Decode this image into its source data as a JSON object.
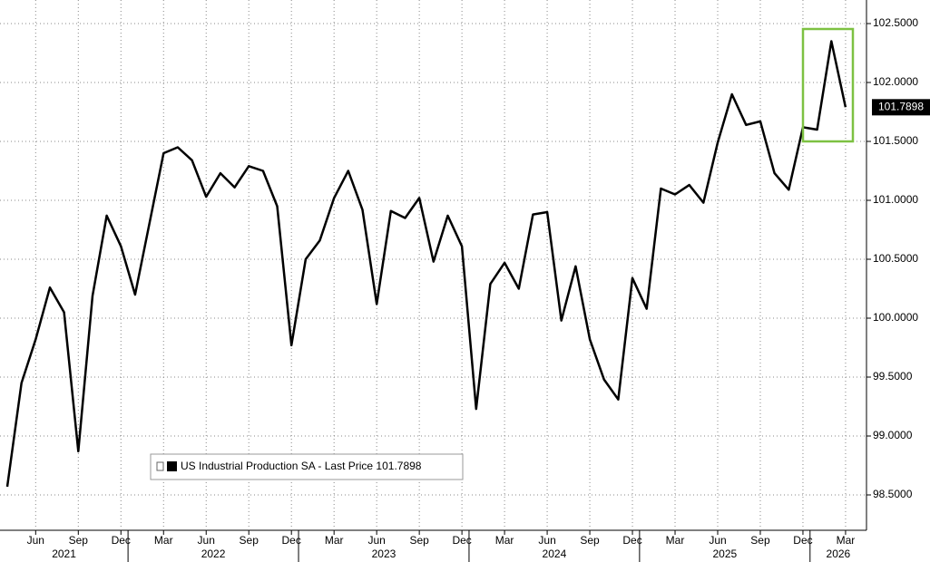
{
  "chart_data": {
    "type": "line",
    "x": [
      "2021-04",
      "2021-05",
      "2021-06",
      "2021-07",
      "2021-08",
      "2021-09",
      "2021-10",
      "2021-11",
      "2021-12",
      "2022-01",
      "2022-02",
      "2022-03",
      "2022-04",
      "2022-05",
      "2022-06",
      "2022-07",
      "2022-08",
      "2022-09",
      "2022-10",
      "2022-11",
      "2022-12",
      "2023-01",
      "2023-02",
      "2023-03",
      "2023-04",
      "2023-05",
      "2023-06",
      "2023-07",
      "2023-08",
      "2023-09",
      "2023-10",
      "2023-11",
      "2023-12",
      "2024-01",
      "2024-02",
      "2024-03",
      "2024-04",
      "2024-05",
      "2024-06",
      "2024-07",
      "2024-08",
      "2024-09",
      "2024-10",
      "2024-11",
      "2024-12",
      "2025-01",
      "2025-02",
      "2025-03",
      "2025-04",
      "2025-05",
      "2025-06",
      "2025-07",
      "2025-08",
      "2025-09",
      "2025-10",
      "2025-11",
      "2025-12",
      "2026-01",
      "2026-02",
      "2026-03"
    ],
    "series": [
      {
        "name": "US Industrial Production SA - Last Price 101.7898",
        "color": "#000000",
        "values": [
          98.57,
          99.45,
          99.82,
          100.26,
          100.05,
          98.87,
          100.19,
          100.87,
          100.61,
          100.2,
          100.8,
          101.4,
          101.45,
          101.34,
          101.03,
          101.23,
          101.11,
          101.29,
          101.25,
          100.95,
          99.77,
          100.5,
          100.66,
          101.02,
          101.25,
          100.92,
          100.12,
          100.91,
          100.85,
          101.02,
          100.48,
          100.87,
          100.61,
          99.23,
          100.29,
          100.47,
          100.25,
          100.88,
          100.9,
          99.98,
          100.44,
          99.82,
          99.48,
          99.31,
          100.34,
          100.08,
          101.1,
          101.05,
          101.13,
          100.98,
          101.49,
          101.9,
          101.64,
          101.67,
          101.23,
          101.09,
          101.62,
          101.6,
          102.35,
          101.7898
        ]
      }
    ],
    "ylim": [
      98.25,
      102.65
    ],
    "yticks": [
      {
        "value": 98.5,
        "label": "98.5000"
      },
      {
        "value": 99,
        "label": "99.0000"
      },
      {
        "value": 99.5,
        "label": "99.5000"
      },
      {
        "value": 100,
        "label": "100.0000"
      },
      {
        "value": 100.5,
        "label": "100.5000"
      },
      {
        "value": 101,
        "label": "101.0000"
      },
      {
        "value": 101.5,
        "label": "101.5000"
      },
      {
        "value": 102,
        "label": "102.0000"
      },
      {
        "value": 102.5,
        "label": "102.5000"
      }
    ],
    "xticks": [
      {
        "value": "2021-06",
        "label": "Jun"
      },
      {
        "value": "2021-09",
        "label": "Sep"
      },
      {
        "value": "2021-12",
        "label": "Dec"
      },
      {
        "value": "2022-03",
        "label": "Mar"
      },
      {
        "value": "2022-06",
        "label": "Jun"
      },
      {
        "value": "2022-09",
        "label": "Sep"
      },
      {
        "value": "2022-12",
        "label": "Dec"
      },
      {
        "value": "2023-03",
        "label": "Mar"
      },
      {
        "value": "2023-06",
        "label": "Jun"
      },
      {
        "value": "2023-09",
        "label": "Sep"
      },
      {
        "value": "2023-12",
        "label": "Dec"
      },
      {
        "value": "2024-03",
        "label": "Mar"
      },
      {
        "value": "2024-06",
        "label": "Jun"
      },
      {
        "value": "2024-09",
        "label": "Sep"
      },
      {
        "value": "2024-12",
        "label": "Dec"
      },
      {
        "value": "2025-03",
        "label": "Mar"
      },
      {
        "value": "2025-06",
        "label": "Jun"
      },
      {
        "value": "2025-09",
        "label": "Sep"
      },
      {
        "value": "2025-12",
        "label": "Dec"
      },
      {
        "value": "2026-03",
        "label": "Mar"
      }
    ],
    "years": [
      "2021",
      "2022",
      "2023",
      "2024",
      "2025",
      "2026"
    ],
    "grid": true
  }
}
